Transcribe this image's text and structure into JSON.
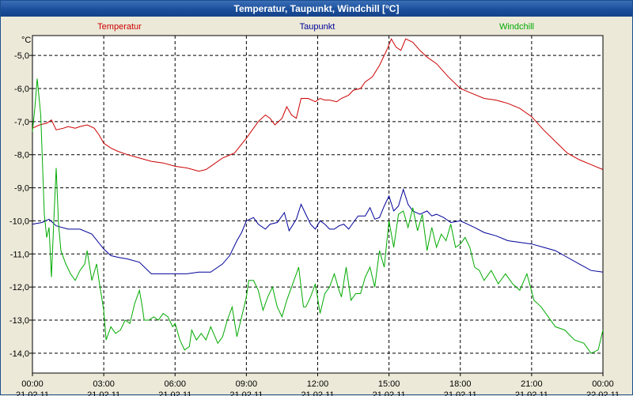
{
  "window": {
    "title": "Temperatur, Taupunkt, Windchill [°C]"
  },
  "chart_data": {
    "type": "line",
    "unit_label": "°C",
    "ylim": [
      -14.6,
      -4.4
    ],
    "y_ticks": [
      {
        "v": -5,
        "label": "-5,0"
      },
      {
        "v": -6,
        "label": "-6,0"
      },
      {
        "v": -7,
        "label": "-7,0"
      },
      {
        "v": -8,
        "label": "-8,0"
      },
      {
        "v": -9,
        "label": "-9,0"
      },
      {
        "v": -10,
        "label": "-10,0"
      },
      {
        "v": -11,
        "label": "-11,0"
      },
      {
        "v": -12,
        "label": "-12,0"
      },
      {
        "v": -13,
        "label": "-13,0"
      },
      {
        "v": -14,
        "label": "-14,0"
      }
    ],
    "xlim": [
      0,
      24
    ],
    "x_ticks": [
      {
        "h": 0,
        "time": "00:00",
        "date": "21.02.11"
      },
      {
        "h": 3,
        "time": "03:00",
        "date": "21.02.11"
      },
      {
        "h": 6,
        "time": "06:00",
        "date": "21.02.11"
      },
      {
        "h": 9,
        "time": "09:00",
        "date": "21.02.11"
      },
      {
        "h": 12,
        "time": "12:00",
        "date": "21.02.11"
      },
      {
        "h": 15,
        "time": "15:00",
        "date": "21.02.11"
      },
      {
        "h": 18,
        "time": "18:00",
        "date": "21.02.11"
      },
      {
        "h": 21,
        "time": "21:00",
        "date": "21.02.11"
      },
      {
        "h": 24,
        "time": "00:00",
        "date": "22.02.11"
      }
    ],
    "grid": true,
    "legend_position": "top",
    "series": [
      {
        "name": "Temperatur",
        "color": "#CC0000",
        "points": [
          [
            0,
            -7.2
          ],
          [
            0.3,
            -7.1
          ],
          [
            0.6,
            -7.05
          ],
          [
            0.8,
            -6.95
          ],
          [
            1.0,
            -7.25
          ],
          [
            1.3,
            -7.2
          ],
          [
            1.5,
            -7.15
          ],
          [
            1.8,
            -7.2
          ],
          [
            2.0,
            -7.15
          ],
          [
            2.3,
            -7.1
          ],
          [
            2.6,
            -7.2
          ],
          [
            2.8,
            -7.4
          ],
          [
            3.0,
            -7.65
          ],
          [
            3.3,
            -7.8
          ],
          [
            3.6,
            -7.9
          ],
          [
            4.0,
            -8.0
          ],
          [
            4.5,
            -8.1
          ],
          [
            5.0,
            -8.2
          ],
          [
            5.5,
            -8.25
          ],
          [
            6.0,
            -8.35
          ],
          [
            6.5,
            -8.4
          ],
          [
            7.0,
            -8.5
          ],
          [
            7.3,
            -8.45
          ],
          [
            7.6,
            -8.3
          ],
          [
            8.0,
            -8.1
          ],
          [
            8.5,
            -7.95
          ],
          [
            9.0,
            -7.5
          ],
          [
            9.5,
            -7.0
          ],
          [
            9.8,
            -6.8
          ],
          [
            10.0,
            -6.9
          ],
          [
            10.2,
            -7.1
          ],
          [
            10.5,
            -6.9
          ],
          [
            10.7,
            -6.55
          ],
          [
            10.9,
            -6.8
          ],
          [
            11.1,
            -6.9
          ],
          [
            11.3,
            -6.3
          ],
          [
            11.6,
            -6.3
          ],
          [
            11.9,
            -6.4
          ],
          [
            12.1,
            -6.3
          ],
          [
            12.3,
            -6.35
          ],
          [
            12.5,
            -6.35
          ],
          [
            12.8,
            -6.4
          ],
          [
            13.0,
            -6.3
          ],
          [
            13.3,
            -6.2
          ],
          [
            13.5,
            -6.05
          ],
          [
            13.8,
            -6.0
          ],
          [
            14.0,
            -5.8
          ],
          [
            14.3,
            -5.65
          ],
          [
            14.6,
            -5.3
          ],
          [
            14.9,
            -4.85
          ],
          [
            15.1,
            -4.5
          ],
          [
            15.3,
            -4.75
          ],
          [
            15.5,
            -4.85
          ],
          [
            15.7,
            -4.5
          ],
          [
            16.0,
            -4.6
          ],
          [
            16.3,
            -4.85
          ],
          [
            16.6,
            -5.05
          ],
          [
            17.0,
            -5.25
          ],
          [
            17.5,
            -5.65
          ],
          [
            18.0,
            -6.0
          ],
          [
            18.5,
            -6.15
          ],
          [
            19.0,
            -6.3
          ],
          [
            19.5,
            -6.35
          ],
          [
            20.0,
            -6.45
          ],
          [
            20.5,
            -6.6
          ],
          [
            21.0,
            -6.85
          ],
          [
            21.5,
            -7.25
          ],
          [
            22.0,
            -7.6
          ],
          [
            22.5,
            -7.95
          ],
          [
            23.0,
            -8.15
          ],
          [
            23.5,
            -8.3
          ],
          [
            24.0,
            -8.45
          ]
        ]
      },
      {
        "name": "Taupunkt",
        "color": "#000099",
        "points": [
          [
            0,
            -10.1
          ],
          [
            0.4,
            -10.05
          ],
          [
            0.7,
            -9.95
          ],
          [
            1.0,
            -10.15
          ],
          [
            1.5,
            -10.25
          ],
          [
            2.0,
            -10.25
          ],
          [
            2.5,
            -10.4
          ],
          [
            3.0,
            -10.85
          ],
          [
            3.3,
            -11.05
          ],
          [
            3.6,
            -11.1
          ],
          [
            4.0,
            -11.15
          ],
          [
            4.5,
            -11.25
          ],
          [
            5.0,
            -11.6
          ],
          [
            5.5,
            -11.6
          ],
          [
            6.0,
            -11.6
          ],
          [
            6.5,
            -11.6
          ],
          [
            7.0,
            -11.55
          ],
          [
            7.5,
            -11.55
          ],
          [
            7.8,
            -11.4
          ],
          [
            8.0,
            -11.3
          ],
          [
            8.3,
            -11.05
          ],
          [
            8.6,
            -10.6
          ],
          [
            8.8,
            -10.35
          ],
          [
            9.0,
            -10.0
          ],
          [
            9.3,
            -9.9
          ],
          [
            9.5,
            -10.1
          ],
          [
            9.8,
            -10.25
          ],
          [
            10.0,
            -10.1
          ],
          [
            10.3,
            -10.05
          ],
          [
            10.6,
            -9.75
          ],
          [
            10.8,
            -10.3
          ],
          [
            11.1,
            -9.95
          ],
          [
            11.3,
            -9.5
          ],
          [
            11.5,
            -9.8
          ],
          [
            11.7,
            -10.1
          ],
          [
            11.9,
            -10.25
          ],
          [
            12.1,
            -10.0
          ],
          [
            12.3,
            -10.1
          ],
          [
            12.5,
            -10.25
          ],
          [
            12.7,
            -10.25
          ],
          [
            12.9,
            -10.15
          ],
          [
            13.1,
            -10.1
          ],
          [
            13.3,
            -10.25
          ],
          [
            13.5,
            -10.05
          ],
          [
            13.7,
            -9.85
          ],
          [
            14.0,
            -9.85
          ],
          [
            14.2,
            -9.6
          ],
          [
            14.4,
            -9.95
          ],
          [
            14.6,
            -9.9
          ],
          [
            14.8,
            -9.55
          ],
          [
            15.0,
            -9.25
          ],
          [
            15.2,
            -9.7
          ],
          [
            15.4,
            -9.55
          ],
          [
            15.6,
            -9.05
          ],
          [
            15.8,
            -9.5
          ],
          [
            16.0,
            -9.7
          ],
          [
            16.3,
            -9.8
          ],
          [
            16.6,
            -9.7
          ],
          [
            16.8,
            -9.85
          ],
          [
            17.0,
            -9.8
          ],
          [
            17.3,
            -9.9
          ],
          [
            17.6,
            -10.05
          ],
          [
            18.0,
            -10.0
          ],
          [
            18.3,
            -10.1
          ],
          [
            18.6,
            -10.2
          ],
          [
            19.0,
            -10.35
          ],
          [
            19.5,
            -10.45
          ],
          [
            20.0,
            -10.6
          ],
          [
            20.5,
            -10.65
          ],
          [
            21.0,
            -10.7
          ],
          [
            21.5,
            -10.8
          ],
          [
            22.0,
            -10.9
          ],
          [
            22.5,
            -11.1
          ],
          [
            23.0,
            -11.3
          ],
          [
            23.5,
            -11.5
          ],
          [
            24.0,
            -11.55
          ]
        ]
      },
      {
        "name": "Windchill",
        "color": "#00AA00",
        "points": [
          [
            0,
            -7.3
          ],
          [
            0.1,
            -6.6
          ],
          [
            0.2,
            -5.7
          ],
          [
            0.35,
            -6.8
          ],
          [
            0.5,
            -9.8
          ],
          [
            0.6,
            -10.5
          ],
          [
            0.7,
            -10.2
          ],
          [
            0.8,
            -11.7
          ],
          [
            0.9,
            -10.0
          ],
          [
            1.0,
            -8.4
          ],
          [
            1.1,
            -10.1
          ],
          [
            1.2,
            -10.9
          ],
          [
            1.4,
            -11.3
          ],
          [
            1.6,
            -11.6
          ],
          [
            1.8,
            -11.8
          ],
          [
            2.0,
            -11.5
          ],
          [
            2.2,
            -11.3
          ],
          [
            2.3,
            -10.9
          ],
          [
            2.5,
            -11.8
          ],
          [
            2.7,
            -11.3
          ],
          [
            2.8,
            -11.8
          ],
          [
            3.0,
            -12.7
          ],
          [
            3.1,
            -13.6
          ],
          [
            3.3,
            -13.2
          ],
          [
            3.5,
            -13.4
          ],
          [
            3.7,
            -13.3
          ],
          [
            3.9,
            -13.0
          ],
          [
            4.1,
            -13.1
          ],
          [
            4.3,
            -12.5
          ],
          [
            4.5,
            -12.1
          ],
          [
            4.6,
            -12.5
          ],
          [
            4.7,
            -13.0
          ],
          [
            4.9,
            -13.0
          ],
          [
            5.1,
            -12.9
          ],
          [
            5.3,
            -13.0
          ],
          [
            5.5,
            -12.8
          ],
          [
            5.7,
            -12.9
          ],
          [
            5.9,
            -13.2
          ],
          [
            6.0,
            -13.1
          ],
          [
            6.2,
            -13.6
          ],
          [
            6.4,
            -13.9
          ],
          [
            6.6,
            -13.8
          ],
          [
            6.7,
            -13.3
          ],
          [
            6.9,
            -13.6
          ],
          [
            7.1,
            -13.4
          ],
          [
            7.3,
            -13.6
          ],
          [
            7.5,
            -13.2
          ],
          [
            7.8,
            -13.7
          ],
          [
            8.0,
            -13.5
          ],
          [
            8.2,
            -13.0
          ],
          [
            8.4,
            -12.6
          ],
          [
            8.6,
            -13.5
          ],
          [
            8.8,
            -12.9
          ],
          [
            9.0,
            -12.3
          ],
          [
            9.1,
            -11.8
          ],
          [
            9.3,
            -11.8
          ],
          [
            9.5,
            -12.1
          ],
          [
            9.7,
            -12.7
          ],
          [
            9.9,
            -12.3
          ],
          [
            10.1,
            -12.0
          ],
          [
            10.3,
            -12.6
          ],
          [
            10.5,
            -12.9
          ],
          [
            10.7,
            -12.4
          ],
          [
            11.0,
            -11.8
          ],
          [
            11.2,
            -11.4
          ],
          [
            11.4,
            -12.6
          ],
          [
            11.5,
            -12.6
          ],
          [
            11.7,
            -12.3
          ],
          [
            11.9,
            -11.9
          ],
          [
            12.1,
            -12.8
          ],
          [
            12.3,
            -12.2
          ],
          [
            12.5,
            -12.0
          ],
          [
            12.7,
            -11.6
          ],
          [
            12.9,
            -12.1
          ],
          [
            13.0,
            -12.3
          ],
          [
            13.2,
            -11.4
          ],
          [
            13.4,
            -12.4
          ],
          [
            13.6,
            -12.2
          ],
          [
            13.8,
            -12.2
          ],
          [
            14.0,
            -11.7
          ],
          [
            14.2,
            -11.4
          ],
          [
            14.4,
            -12.0
          ],
          [
            14.6,
            -10.9
          ],
          [
            14.8,
            -11.4
          ],
          [
            15.0,
            -10.0
          ],
          [
            15.2,
            -10.8
          ],
          [
            15.4,
            -9.8
          ],
          [
            15.6,
            -9.7
          ],
          [
            15.8,
            -10.2
          ],
          [
            16.0,
            -9.6
          ],
          [
            16.2,
            -10.3
          ],
          [
            16.4,
            -9.8
          ],
          [
            16.6,
            -10.9
          ],
          [
            16.8,
            -10.2
          ],
          [
            17.0,
            -10.8
          ],
          [
            17.2,
            -10.4
          ],
          [
            17.4,
            -10.6
          ],
          [
            17.6,
            -10.1
          ],
          [
            17.8,
            -10.8
          ],
          [
            18.0,
            -10.7
          ],
          [
            18.2,
            -10.5
          ],
          [
            18.4,
            -10.8
          ],
          [
            18.6,
            -11.4
          ],
          [
            18.8,
            -11.5
          ],
          [
            19.0,
            -11.8
          ],
          [
            19.3,
            -11.5
          ],
          [
            19.6,
            -11.9
          ],
          [
            19.9,
            -11.6
          ],
          [
            20.2,
            -11.9
          ],
          [
            20.5,
            -12.1
          ],
          [
            20.8,
            -11.6
          ],
          [
            21.1,
            -12.4
          ],
          [
            21.4,
            -12.6
          ],
          [
            21.7,
            -12.9
          ],
          [
            22.0,
            -13.2
          ],
          [
            22.4,
            -13.3
          ],
          [
            22.8,
            -13.6
          ],
          [
            23.2,
            -13.7
          ],
          [
            23.5,
            -14.0
          ],
          [
            23.8,
            -13.9
          ],
          [
            24.0,
            -13.3
          ]
        ]
      }
    ]
  }
}
